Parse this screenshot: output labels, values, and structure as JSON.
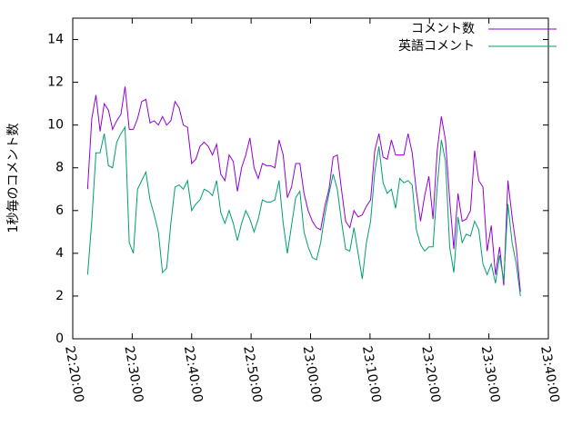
{
  "chart_data": {
    "type": "line",
    "y_label": "1秒毎のコメント数",
    "x": [
      80550,
      80592,
      80634,
      80676,
      80718,
      80760,
      80802,
      80844,
      80886,
      80928,
      80970,
      81012,
      81054,
      81096,
      81138,
      81180,
      81222,
      81264,
      81306,
      81348,
      81390,
      81432,
      81474,
      81516,
      81558,
      81600,
      81642,
      81684,
      81726,
      81768,
      81810,
      81852,
      81894,
      81936,
      81978,
      82020,
      82062,
      82104,
      82146,
      82188,
      82230,
      82272,
      82314,
      82356,
      82398,
      82440,
      82482,
      82524,
      82566,
      82608,
      82650,
      82692,
      82734,
      82776,
      82818,
      82860,
      82902,
      82944,
      82986,
      83028,
      83070,
      83112,
      83154,
      83196,
      83238,
      83280,
      83322,
      83364,
      83406,
      83448,
      83490,
      83532,
      83574,
      83616,
      83658,
      83700,
      83742,
      83784,
      83826,
      83868,
      83910,
      83952,
      83994,
      84036,
      84078,
      84120,
      84162,
      84204,
      84246,
      84288,
      84330,
      84372,
      84414,
      84456,
      84498,
      84540,
      84582,
      84624,
      84666,
      84708,
      84750,
      84792,
      84834,
      84876,
      84918
    ],
    "series": [
      {
        "name": "コメント数",
        "color": "#9400d3",
        "values": [
          7.0,
          10.3,
          11.4,
          9.7,
          11.0,
          10.7,
          9.8,
          10.2,
          10.5,
          11.8,
          9.8,
          9.8,
          10.3,
          11.1,
          11.2,
          10.1,
          10.2,
          10.0,
          10.4,
          10.0,
          10.2,
          11.1,
          10.8,
          10.0,
          9.9,
          8.2,
          8.4,
          9.0,
          9.2,
          9.0,
          8.6,
          9.1,
          7.7,
          7.4,
          8.6,
          8.3,
          6.9,
          8.0,
          8.6,
          9.4,
          8.0,
          7.5,
          8.2,
          8.1,
          8.1,
          8.0,
          9.3,
          8.6,
          6.6,
          7.1,
          8.2,
          8.2,
          6.8,
          6.0,
          5.5,
          5.2,
          5.1,
          6.2,
          7.0,
          8.5,
          8.6,
          7.0,
          5.5,
          5.2,
          6.0,
          5.7,
          5.8,
          6.2,
          6.5,
          8.8,
          9.6,
          8.5,
          8.4,
          9.3,
          8.6,
          8.6,
          8.6,
          9.6,
          8.7,
          6.9,
          5.5,
          6.7,
          7.6,
          5.6,
          8.8,
          10.4,
          9.3,
          6.5,
          4.2,
          6.8,
          5.5,
          5.6,
          6.0,
          8.8,
          7.4,
          7.1,
          4.1,
          5.3,
          3.0,
          4.3,
          2.5,
          7.4,
          5.7,
          4.3,
          2.2
        ]
      },
      {
        "name": "英語コメント",
        "color": "#009e73",
        "values": [
          3.0,
          5.5,
          8.7,
          8.7,
          9.6,
          8.1,
          8.0,
          9.2,
          9.6,
          9.9,
          4.5,
          4.0,
          7.0,
          7.4,
          7.8,
          6.5,
          5.8,
          5.0,
          3.1,
          3.3,
          5.4,
          7.1,
          7.2,
          7.0,
          7.4,
          6.0,
          6.3,
          6.5,
          7.0,
          6.9,
          6.7,
          7.4,
          5.9,
          5.4,
          6.0,
          5.4,
          4.6,
          5.4,
          6.0,
          5.6,
          5.0,
          5.6,
          6.5,
          6.4,
          6.4,
          6.5,
          7.4,
          5.4,
          4.0,
          5.3,
          6.6,
          6.9,
          5.0,
          4.3,
          3.8,
          3.7,
          4.5,
          5.8,
          6.8,
          7.7,
          7.0,
          5.5,
          4.2,
          4.1,
          5.2,
          4.0,
          2.8,
          4.5,
          5.5,
          7.8,
          9.0,
          7.3,
          6.8,
          7.0,
          6.1,
          7.5,
          7.3,
          7.4,
          7.2,
          5.1,
          4.4,
          4.1,
          4.3,
          4.3,
          7.1,
          9.3,
          8.3,
          4.3,
          3.1,
          5.7,
          4.5,
          4.9,
          4.8,
          5.5,
          5.1,
          3.5,
          3.0,
          3.5,
          2.6,
          3.9,
          2.7,
          6.3,
          4.5,
          3.5,
          2.0
        ]
      }
    ],
    "xlim": [
      80400,
      85200
    ],
    "xticks": [
      {
        "value": 80400,
        "label": "22:20:00"
      },
      {
        "value": 81000,
        "label": "22:30:00"
      },
      {
        "value": 81600,
        "label": "22:40:00"
      },
      {
        "value": 82200,
        "label": "22:50:00"
      },
      {
        "value": 82800,
        "label": "23:00:00"
      },
      {
        "value": 83400,
        "label": "23:10:00"
      },
      {
        "value": 84000,
        "label": "23:20:00"
      },
      {
        "value": 84600,
        "label": "23:30:00"
      },
      {
        "value": 85200,
        "label": "23:40:00"
      }
    ],
    "ylim": [
      0,
      15
    ],
    "yticks": [
      0,
      2,
      4,
      6,
      8,
      10,
      12,
      14
    ],
    "legend": "top-right"
  }
}
